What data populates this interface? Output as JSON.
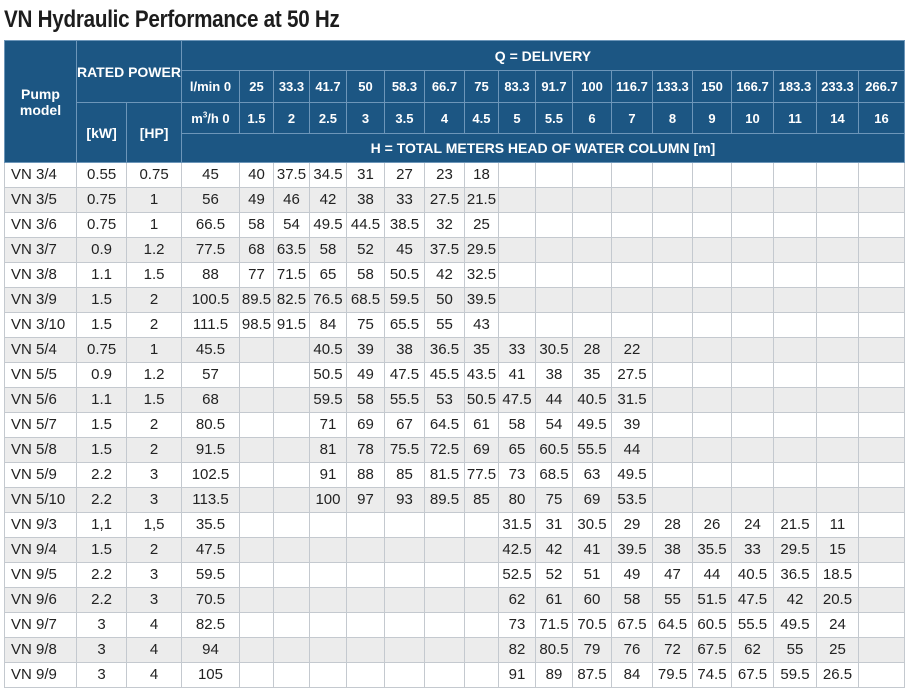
{
  "title": "VN Hydraulic Performance at 50 Hz",
  "header": {
    "pump_model": "Pump model",
    "rated_power": "RATED POWER",
    "kw": "[kW]",
    "hp": "[HP]",
    "q_delivery": "Q = DELIVERY",
    "unit_lmin": "l/min 0",
    "unit_m3h_pre": "m",
    "unit_m3h_sup": "3",
    "unit_m3h_post": "/h 0",
    "h_label": "H = TOTAL METERS HEAD OF WATER COLUMN [m]",
    "lmin": [
      "25",
      "33.3",
      "41.7",
      "50",
      "58.3",
      "66.7",
      "75",
      "83.3",
      "91.7",
      "100",
      "116.7",
      "133.3",
      "150",
      "166.7",
      "183.3",
      "233.3",
      "266.7"
    ],
    "m3h": [
      "1.5",
      "2",
      "2.5",
      "3",
      "3.5",
      "4",
      "4.5",
      "5",
      "5.5",
      "6",
      "7",
      "8",
      "9",
      "10",
      "11",
      "14",
      "16"
    ]
  },
  "rows": [
    {
      "model": "VN 3/4",
      "kw": "0.55",
      "hp": "0.75",
      "h": [
        "45",
        "40",
        "37.5",
        "34.5",
        "31",
        "27",
        "23",
        "18",
        "",
        "",
        "",
        "",
        "",
        "",
        "",
        "",
        "",
        ""
      ]
    },
    {
      "model": "VN 3/5",
      "kw": "0.75",
      "hp": "1",
      "h": [
        "56",
        "49",
        "46",
        "42",
        "38",
        "33",
        "27.5",
        "21.5",
        "",
        "",
        "",
        "",
        "",
        "",
        "",
        "",
        "",
        ""
      ]
    },
    {
      "model": "VN 3/6",
      "kw": "0.75",
      "hp": "1",
      "h": [
        "66.5",
        "58",
        "54",
        "49.5",
        "44.5",
        "38.5",
        "32",
        "25",
        "",
        "",
        "",
        "",
        "",
        "",
        "",
        "",
        "",
        ""
      ]
    },
    {
      "model": "VN 3/7",
      "kw": "0.9",
      "hp": "1.2",
      "h": [
        "77.5",
        "68",
        "63.5",
        "58",
        "52",
        "45",
        "37.5",
        "29.5",
        "",
        "",
        "",
        "",
        "",
        "",
        "",
        "",
        "",
        ""
      ]
    },
    {
      "model": "VN 3/8",
      "kw": "1.1",
      "hp": "1.5",
      "h": [
        "88",
        "77",
        "71.5",
        "65",
        "58",
        "50.5",
        "42",
        "32.5",
        "",
        "",
        "",
        "",
        "",
        "",
        "",
        "",
        "",
        ""
      ]
    },
    {
      "model": "VN 3/9",
      "kw": "1.5",
      "hp": "2",
      "h": [
        "100.5",
        "89.5",
        "82.5",
        "76.5",
        "68.5",
        "59.5",
        "50",
        "39.5",
        "",
        "",
        "",
        "",
        "",
        "",
        "",
        "",
        "",
        ""
      ]
    },
    {
      "model": "VN 3/10",
      "kw": "1.5",
      "hp": "2",
      "h": [
        "111.5",
        "98.5",
        "91.5",
        "84",
        "75",
        "65.5",
        "55",
        "43",
        "",
        "",
        "",
        "",
        "",
        "",
        "",
        "",
        "",
        ""
      ]
    },
    {
      "model": "VN 5/4",
      "kw": "0.75",
      "hp": "1",
      "h": [
        "45.5",
        "",
        "",
        "40.5",
        "39",
        "38",
        "36.5",
        "35",
        "33",
        "30.5",
        "28",
        "22",
        "",
        "",
        "",
        "",
        "",
        ""
      ]
    },
    {
      "model": "VN 5/5",
      "kw": "0.9",
      "hp": "1.2",
      "h": [
        "57",
        "",
        "",
        "50.5",
        "49",
        "47.5",
        "45.5",
        "43.5",
        "41",
        "38",
        "35",
        "27.5",
        "",
        "",
        "",
        "",
        "",
        ""
      ]
    },
    {
      "model": "VN 5/6",
      "kw": "1.1",
      "hp": "1.5",
      "h": [
        "68",
        "",
        "",
        "59.5",
        "58",
        "55.5",
        "53",
        "50.5",
        "47.5",
        "44",
        "40.5",
        "31.5",
        "",
        "",
        "",
        "",
        "",
        ""
      ]
    },
    {
      "model": "VN 5/7",
      "kw": "1.5",
      "hp": "2",
      "h": [
        "80.5",
        "",
        "",
        "71",
        "69",
        "67",
        "64.5",
        "61",
        "58",
        "54",
        "49.5",
        "39",
        "",
        "",
        "",
        "",
        "",
        ""
      ]
    },
    {
      "model": "VN 5/8",
      "kw": "1.5",
      "hp": "2",
      "h": [
        "91.5",
        "",
        "",
        "81",
        "78",
        "75.5",
        "72.5",
        "69",
        "65",
        "60.5",
        "55.5",
        "44",
        "",
        "",
        "",
        "",
        "",
        ""
      ]
    },
    {
      "model": "VN 5/9",
      "kw": "2.2",
      "hp": "3",
      "h": [
        "102.5",
        "",
        "",
        "91",
        "88",
        "85",
        "81.5",
        "77.5",
        "73",
        "68.5",
        "63",
        "49.5",
        "",
        "",
        "",
        "",
        "",
        ""
      ]
    },
    {
      "model": "VN 5/10",
      "kw": "2.2",
      "hp": "3",
      "h": [
        "113.5",
        "",
        "",
        "100",
        "97",
        "93",
        "89.5",
        "85",
        "80",
        "75",
        "69",
        "53.5",
        "",
        "",
        "",
        "",
        "",
        ""
      ]
    },
    {
      "model": "VN 9/3",
      "kw": "1,1",
      "hp": "1,5",
      "h": [
        "35.5",
        "",
        "",
        "",
        "",
        "",
        "",
        "",
        "31.5",
        "31",
        "30.5",
        "29",
        "28",
        "26",
        "24",
        "21.5",
        "11",
        ""
      ]
    },
    {
      "model": "VN 9/4",
      "kw": "1.5",
      "hp": "2",
      "h": [
        "47.5",
        "",
        "",
        "",
        "",
        "",
        "",
        "",
        "42.5",
        "42",
        "41",
        "39.5",
        "38",
        "35.5",
        "33",
        "29.5",
        "15",
        ""
      ]
    },
    {
      "model": "VN 9/5",
      "kw": "2.2",
      "hp": "3",
      "h": [
        "59.5",
        "",
        "",
        "",
        "",
        "",
        "",
        "",
        "52.5",
        "52",
        "51",
        "49",
        "47",
        "44",
        "40.5",
        "36.5",
        "18.5",
        ""
      ]
    },
    {
      "model": "VN 9/6",
      "kw": "2.2",
      "hp": "3",
      "h": [
        "70.5",
        "",
        "",
        "",
        "",
        "",
        "",
        "",
        "62",
        "61",
        "60",
        "58",
        "55",
        "51.5",
        "47.5",
        "42",
        "20.5",
        ""
      ]
    },
    {
      "model": "VN 9/7",
      "kw": "3",
      "hp": "4",
      "h": [
        "82.5",
        "",
        "",
        "",
        "",
        "",
        "",
        "",
        "73",
        "71.5",
        "70.5",
        "67.5",
        "64.5",
        "60.5",
        "55.5",
        "49.5",
        "24",
        ""
      ]
    },
    {
      "model": "VN 9/8",
      "kw": "3",
      "hp": "4",
      "h": [
        "94",
        "",
        "",
        "",
        "",
        "",
        "",
        "",
        "82",
        "80.5",
        "79",
        "76",
        "72",
        "67.5",
        "62",
        "55",
        "25",
        ""
      ]
    },
    {
      "model": "VN 9/9",
      "kw": "3",
      "hp": "4",
      "h": [
        "105",
        "",
        "",
        "",
        "",
        "",
        "",
        "",
        "91",
        "89",
        "87.5",
        "84",
        "79.5",
        "74.5",
        "67.5",
        "59.5",
        "26.5",
        ""
      ]
    }
  ],
  "colors": {
    "header_bg": "#1c5683",
    "header_text": "#ffffff",
    "stripe": "#ececec"
  }
}
